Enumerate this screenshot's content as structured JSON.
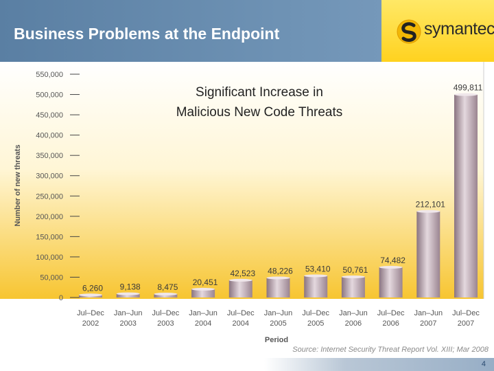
{
  "header": {
    "title": "Business Problems at the Endpoint",
    "logo_text": "symantec.",
    "logo_icon": "symantec-swirl-icon",
    "accent_color": "#6f93b5",
    "logo_bg_color": "#ffd21f"
  },
  "chart_data": {
    "type": "bar",
    "title": "Significant Increase in Malicious New Code Threats",
    "title_lines": [
      "Significant Increase in",
      "Malicious New Code Threats"
    ],
    "xlabel": "Period",
    "ylabel": "Number of new threats",
    "ylim": [
      0,
      550000
    ],
    "yticks": [
      "0",
      "50,000",
      "100,000",
      "150,000",
      "200,000",
      "250,000",
      "300,000",
      "350,000",
      "400,000",
      "450,000",
      "500,000",
      "550,000"
    ],
    "ytick_values": [
      0,
      50000,
      100000,
      150000,
      200000,
      250000,
      300000,
      350000,
      400000,
      450000,
      500000,
      550000
    ],
    "categories": [
      [
        "Jul–Dec",
        "2002"
      ],
      [
        "Jan–Jun",
        "2003"
      ],
      [
        "Jul–Dec",
        "2003"
      ],
      [
        "Jan–Jun",
        "2004"
      ],
      [
        "Jul–Dec",
        "2004"
      ],
      [
        "Jan–Jun",
        "2005"
      ],
      [
        "Jul–Dec",
        "2005"
      ],
      [
        "Jan–Jun",
        "2006"
      ],
      [
        "Jul–Dec",
        "2006"
      ],
      [
        "Jan–Jun",
        "2007"
      ],
      [
        "Jul–Dec",
        "2007"
      ]
    ],
    "values": [
      6260,
      9138,
      8475,
      20451,
      42523,
      48226,
      53410,
      50761,
      74482,
      212101,
      499811
    ],
    "value_labels": [
      "6,260",
      "9,138",
      "8,475",
      "20,451",
      "42,523",
      "48,226",
      "53,410",
      "50,761",
      "74,482",
      "212,101",
      "499,811"
    ],
    "grid": false,
    "legend": "none",
    "bar_color": "#b8a4ae",
    "background_gradient": [
      "#ffffff",
      "#f7c531"
    ]
  },
  "footer": {
    "source": "Source: Internet Security Threat Report Vol. XIII; Mar 2008",
    "page_number": "4"
  }
}
